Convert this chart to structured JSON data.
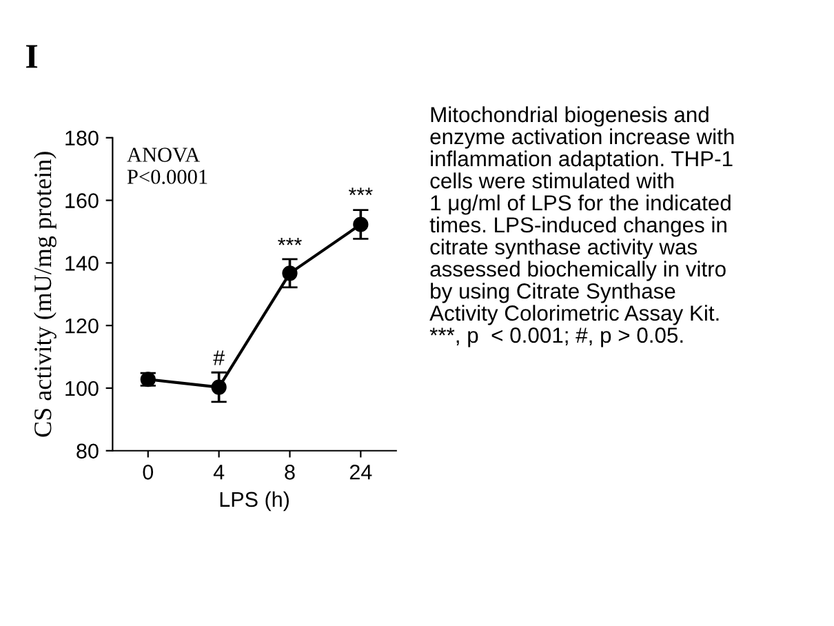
{
  "chart_data": {
    "type": "line",
    "title": "I",
    "xlabel": "LPS (h)",
    "ylabel": "CS activity (mU/mg protein)",
    "categories": [
      "0",
      "4",
      "8",
      "24"
    ],
    "series": [
      {
        "color": "#000000",
        "values": [
          102.8,
          100.3,
          136.7,
          152.3
        ],
        "errors": [
          2,
          4.7,
          4.5,
          4.6
        ]
      }
    ],
    "marker": "circle",
    "line_style": "solid",
    "ylim": [
      80,
      180
    ],
    "yticks": [
      80,
      100,
      120,
      140,
      160,
      180
    ],
    "grid": false,
    "annotations": [
      "ANOVA\nP<0.0001",
      {
        "text": "#",
        "x": "4",
        "y": 106
      },
      {
        "text": "***",
        "x": "8",
        "y": 142
      },
      {
        "text": "***",
        "x": "24",
        "y": 158
      },
      "Mitochondrial biogenesis and\nenzyme activation increase with\ninflammation adaptation. THP-1\ncells were stimulated with\n1 μg/ml of LPS for the indicated\ntimes. LPS-induced changes in\ncitrate synthase activity was\nassessed biochemically in vitro\nby using Citrate Synthase\nActivity Colorimetric Assay Kit.\n***, p  < 0.001; #, p > 0.05."
    ]
  }
}
